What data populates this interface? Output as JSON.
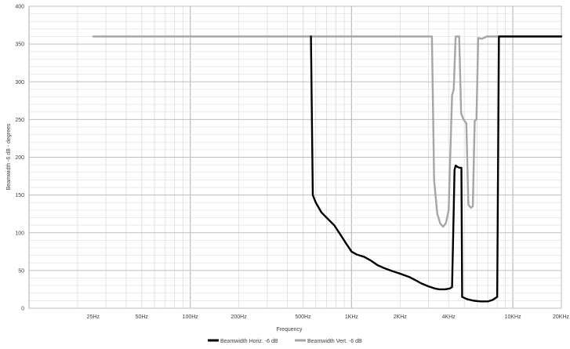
{
  "chart_data": {
    "type": "line",
    "title": "",
    "xlabel": "Frequency",
    "ylabel": "Beamwidth -6 dB - degrees",
    "x_scale": "log",
    "xlim": [
      10,
      20000
    ],
    "ylim": [
      0,
      400
    ],
    "y_ticks": [
      0,
      50,
      100,
      150,
      200,
      250,
      300,
      350,
      400
    ],
    "x_ticks": [
      {
        "value": 25,
        "label": "25Hz"
      },
      {
        "value": 50,
        "label": "50Hz"
      },
      {
        "value": 100,
        "label": "100Hz"
      },
      {
        "value": 200,
        "label": "200Hz"
      },
      {
        "value": 500,
        "label": "500Hz"
      },
      {
        "value": 1000,
        "label": "1KHz"
      },
      {
        "value": 2000,
        "label": "2KHz"
      },
      {
        "value": 4000,
        "label": "4KHz"
      },
      {
        "value": 10000,
        "label": "10KHz"
      },
      {
        "value": 20000,
        "label": "20KHz"
      }
    ],
    "grid": true,
    "legend_position": "bottom",
    "series": [
      {
        "name": "Beamwidth Horiz. -6 dB",
        "color": "#000000",
        "points": [
          [
            560,
            360
          ],
          [
            575,
            150
          ],
          [
            600,
            140
          ],
          [
            650,
            127
          ],
          [
            700,
            120
          ],
          [
            780,
            110
          ],
          [
            850,
            98
          ],
          [
            930,
            85
          ],
          [
            1000,
            75
          ],
          [
            1080,
            71
          ],
          [
            1200,
            68
          ],
          [
            1320,
            63
          ],
          [
            1450,
            57
          ],
          [
            1600,
            53
          ],
          [
            1800,
            49
          ],
          [
            2050,
            45
          ],
          [
            2300,
            41
          ],
          [
            2500,
            37
          ],
          [
            2700,
            33
          ],
          [
            3000,
            29
          ],
          [
            3300,
            26
          ],
          [
            3500,
            25
          ],
          [
            3800,
            25
          ],
          [
            4050,
            26
          ],
          [
            4200,
            28
          ],
          [
            4300,
            130
          ],
          [
            4350,
            183
          ],
          [
            4420,
            189
          ],
          [
            4550,
            187
          ],
          [
            4700,
            186
          ],
          [
            4800,
            186
          ],
          [
            4850,
            15
          ],
          [
            5200,
            12
          ],
          [
            5700,
            10
          ],
          [
            6300,
            9
          ],
          [
            7000,
            9
          ],
          [
            7500,
            11
          ],
          [
            8000,
            15
          ],
          [
            8200,
            360
          ],
          [
            20000,
            360
          ]
        ]
      },
      {
        "name": "Beamwidth Vert. -6 dB",
        "color": "#a6a6a6",
        "points": [
          [
            25,
            360
          ],
          [
            3150,
            360
          ],
          [
            3250,
            170
          ],
          [
            3400,
            125
          ],
          [
            3550,
            112
          ],
          [
            3700,
            108
          ],
          [
            3850,
            113
          ],
          [
            4000,
            130
          ],
          [
            4200,
            282
          ],
          [
            4300,
            290
          ],
          [
            4420,
            360
          ],
          [
            4650,
            360
          ],
          [
            4780,
            258
          ],
          [
            4950,
            250
          ],
          [
            5150,
            245
          ],
          [
            5300,
            137
          ],
          [
            5500,
            133
          ],
          [
            5650,
            135
          ],
          [
            5800,
            248
          ],
          [
            5950,
            250
          ],
          [
            6100,
            358
          ],
          [
            6450,
            357
          ],
          [
            6900,
            360
          ],
          [
            20000,
            360
          ]
        ]
      }
    ]
  }
}
